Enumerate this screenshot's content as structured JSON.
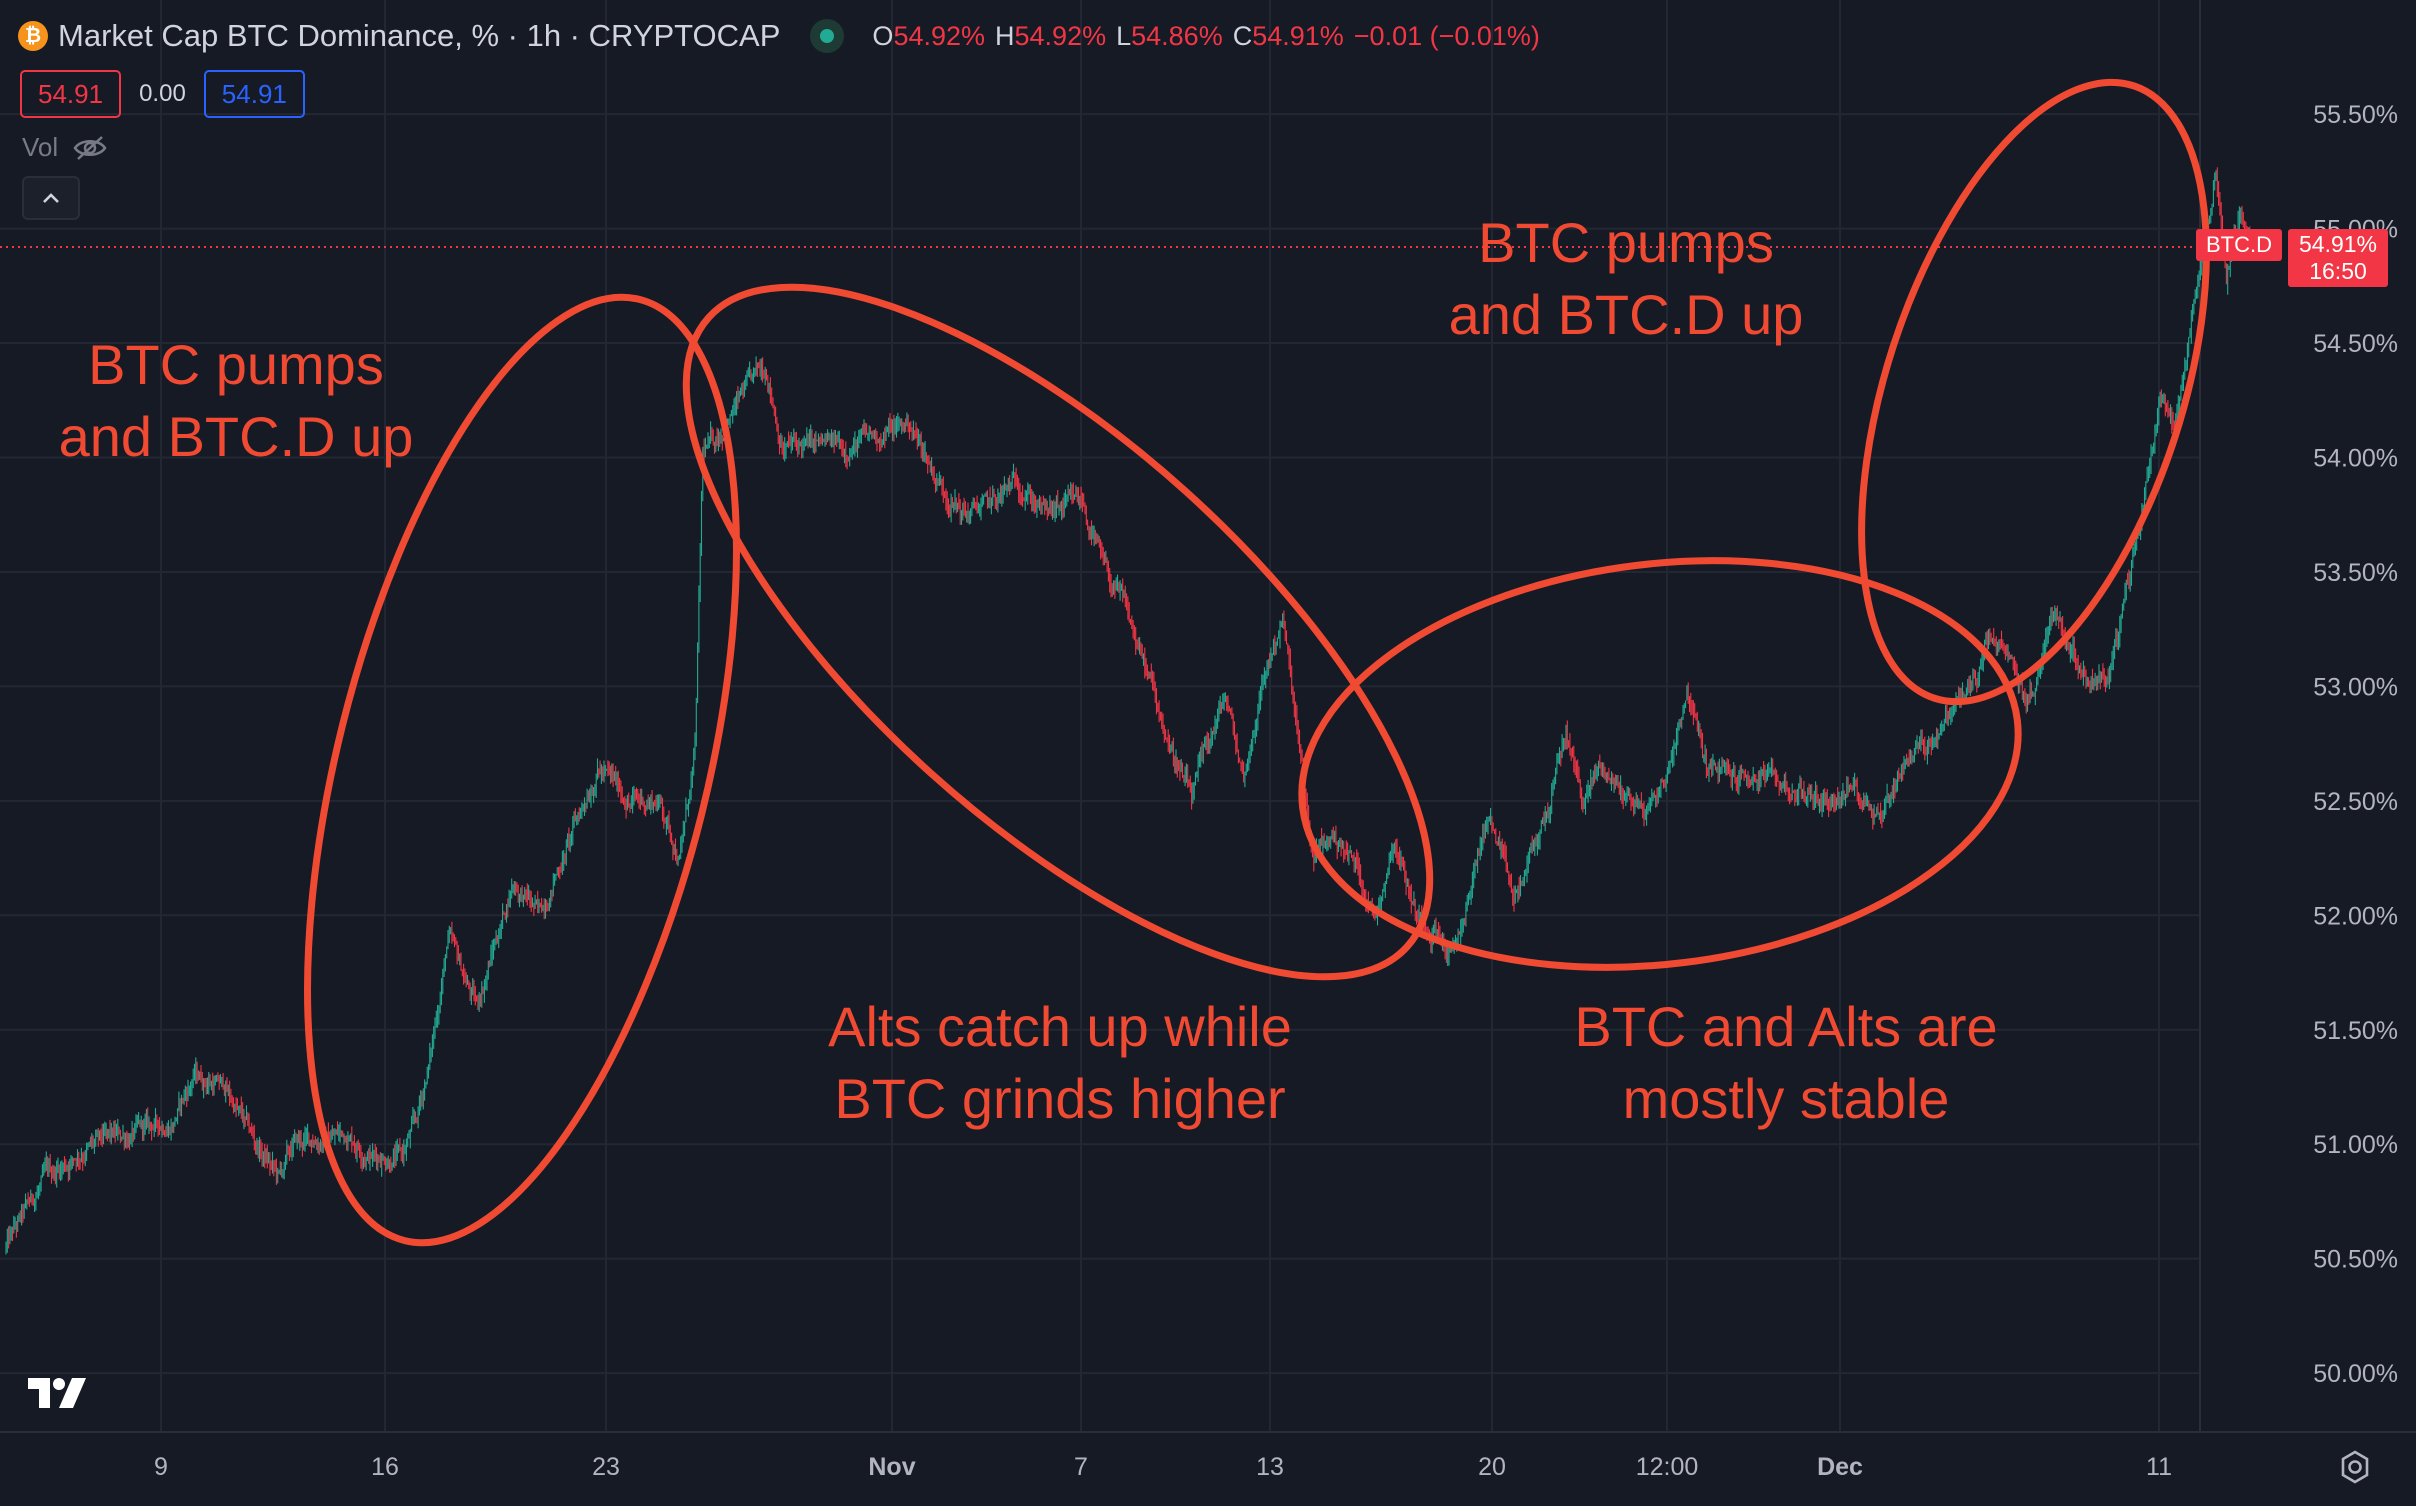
{
  "header": {
    "title": "Market Cap BTC Dominance, % · 1h · CRYPTOCAP",
    "ohlc": [
      {
        "k": "O",
        "v": "54.92%"
      },
      {
        "k": "H",
        "v": "54.92%"
      },
      {
        "k": "L",
        "v": "54.86%"
      },
      {
        "k": "C",
        "v": "54.91%"
      }
    ],
    "change": "−0.01 (−0.01%)",
    "bid": "54.91",
    "spread": "0.00",
    "ask": "54.91",
    "vol_label": "Vol"
  },
  "last_price": {
    "symbol": "BTC.D",
    "value": "54.91%",
    "countdown": "16:50"
  },
  "colors": {
    "background": "#161a25",
    "up": "#22ab94",
    "down": "#f23645",
    "annotation": "#f04a32"
  },
  "chart_data": {
    "type": "candlestick",
    "x_ticks": [
      "9",
      "16",
      "23",
      "Nov",
      "7",
      "13",
      "20",
      "12:00",
      "Dec",
      "11"
    ],
    "y_ticks": [
      "55.50%",
      "55.00%",
      "54.50%",
      "54.00%",
      "53.50%",
      "53.00%",
      "52.50%",
      "52.00%",
      "51.50%",
      "51.00%",
      "50.50%",
      "50.00%"
    ],
    "ylim": [
      49.8,
      55.75
    ],
    "anchors": [
      {
        "t": 0,
        "y": 50.55
      },
      {
        "t": 30,
        "y": 50.85
      },
      {
        "t": 60,
        "y": 50.98
      },
      {
        "t": 100,
        "y": 51.05
      },
      {
        "t": 128,
        "y": 51.1
      },
      {
        "t": 145,
        "y": 51.3
      },
      {
        "t": 168,
        "y": 51.25
      },
      {
        "t": 192,
        "y": 51.0
      },
      {
        "t": 210,
        "y": 50.85
      },
      {
        "t": 222,
        "y": 51.0
      },
      {
        "t": 262,
        "y": 51.05
      },
      {
        "t": 282,
        "y": 50.95
      },
      {
        "t": 305,
        "y": 50.95
      },
      {
        "t": 316,
        "y": 51.1
      },
      {
        "t": 327,
        "y": 51.4
      },
      {
        "t": 340,
        "y": 51.9
      },
      {
        "t": 362,
        "y": 51.6
      },
      {
        "t": 390,
        "y": 52.15
      },
      {
        "t": 410,
        "y": 52.0
      },
      {
        "t": 435,
        "y": 52.35
      },
      {
        "t": 455,
        "y": 52.65
      },
      {
        "t": 480,
        "y": 52.5
      },
      {
        "t": 503,
        "y": 52.5
      },
      {
        "t": 518,
        "y": 52.25
      },
      {
        "t": 530,
        "y": 52.7
      },
      {
        "t": 536,
        "y": 54.0
      },
      {
        "t": 548,
        "y": 54.1
      },
      {
        "t": 570,
        "y": 54.3
      },
      {
        "t": 585,
        "y": 54.4
      },
      {
        "t": 597,
        "y": 54.05
      },
      {
        "t": 615,
        "y": 54.05
      },
      {
        "t": 648,
        "y": 54.05
      },
      {
        "t": 672,
        "y": 54.1
      },
      {
        "t": 695,
        "y": 54.15
      },
      {
        "t": 717,
        "y": 53.9
      },
      {
        "t": 737,
        "y": 53.75
      },
      {
        "t": 760,
        "y": 53.8
      },
      {
        "t": 780,
        "y": 53.9
      },
      {
        "t": 800,
        "y": 53.75
      },
      {
        "t": 828,
        "y": 53.8
      },
      {
        "t": 845,
        "y": 53.5
      },
      {
        "t": 860,
        "y": 53.35
      },
      {
        "t": 875,
        "y": 53.1
      },
      {
        "t": 895,
        "y": 52.75
      },
      {
        "t": 912,
        "y": 52.5
      },
      {
        "t": 925,
        "y": 52.75
      },
      {
        "t": 938,
        "y": 52.95
      },
      {
        "t": 952,
        "y": 52.6
      },
      {
        "t": 968,
        "y": 53.05
      },
      {
        "t": 982,
        "y": 53.3
      },
      {
        "t": 993,
        "y": 52.8
      },
      {
        "t": 1005,
        "y": 52.25
      },
      {
        "t": 1022,
        "y": 52.35
      },
      {
        "t": 1040,
        "y": 52.2
      },
      {
        "t": 1053,
        "y": 52.0
      },
      {
        "t": 1068,
        "y": 52.35
      },
      {
        "t": 1085,
        "y": 52.0
      },
      {
        "t": 1100,
        "y": 51.95
      },
      {
        "t": 1112,
        "y": 51.8
      },
      {
        "t": 1122,
        "y": 52.0
      },
      {
        "t": 1140,
        "y": 52.45
      },
      {
        "t": 1160,
        "y": 52.05
      },
      {
        "t": 1176,
        "y": 52.3
      },
      {
        "t": 1188,
        "y": 52.5
      },
      {
        "t": 1200,
        "y": 52.8
      },
      {
        "t": 1213,
        "y": 52.5
      },
      {
        "t": 1226,
        "y": 52.65
      },
      {
        "t": 1242,
        "y": 52.55
      },
      {
        "t": 1262,
        "y": 52.45
      },
      {
        "t": 1277,
        "y": 52.6
      },
      {
        "t": 1293,
        "y": 53.0
      },
      {
        "t": 1308,
        "y": 52.65
      },
      {
        "t": 1328,
        "y": 52.6
      },
      {
        "t": 1352,
        "y": 52.6
      },
      {
        "t": 1375,
        "y": 52.55
      },
      {
        "t": 1400,
        "y": 52.5
      },
      {
        "t": 1422,
        "y": 52.55
      },
      {
        "t": 1443,
        "y": 52.45
      },
      {
        "t": 1462,
        "y": 52.7
      },
      {
        "t": 1478,
        "y": 52.75
      },
      {
        "t": 1497,
        "y": 52.9
      },
      {
        "t": 1512,
        "y": 53.0
      },
      {
        "t": 1527,
        "y": 53.2
      },
      {
        "t": 1540,
        "y": 53.1
      },
      {
        "t": 1553,
        "y": 52.95
      },
      {
        "t": 1562,
        "y": 53.0
      },
      {
        "t": 1573,
        "y": 53.35
      },
      {
        "t": 1588,
        "y": 53.2
      },
      {
        "t": 1600,
        "y": 53.05
      },
      {
        "t": 1618,
        "y": 53.05
      },
      {
        "t": 1633,
        "y": 53.45
      },
      {
        "t": 1647,
        "y": 53.9
      },
      {
        "t": 1657,
        "y": 54.3
      },
      {
        "t": 1668,
        "y": 54.15
      },
      {
        "t": 1680,
        "y": 54.55
      },
      {
        "t": 1690,
        "y": 54.9
      },
      {
        "t": 1700,
        "y": 55.25
      },
      {
        "t": 1708,
        "y": 54.8
      },
      {
        "t": 1718,
        "y": 55.05
      },
      {
        "t": 1726,
        "y": 54.95
      },
      {
        "t": 1730,
        "y": 54.91
      }
    ]
  },
  "annotations": [
    {
      "id": "a1",
      "lines": [
        "BTC pumps",
        "and BTC.D up"
      ]
    },
    {
      "id": "a2",
      "lines": [
        "BTC pumps",
        "and BTC.D up"
      ]
    },
    {
      "id": "a3",
      "lines": [
        "Alts catch up while",
        "BTC grinds higher"
      ]
    },
    {
      "id": "a4",
      "lines": [
        "BTC and Alts are",
        "mostly stable"
      ]
    }
  ]
}
